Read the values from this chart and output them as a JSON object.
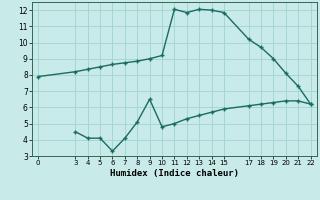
{
  "title": "",
  "xlabel": "Humidex (Indice chaleur)",
  "background_color": "#c8eae8",
  "grid_color": "#a0d4d0",
  "line_color": "#1a6b60",
  "upper_x": [
    0,
    3,
    4,
    5,
    6,
    7,
    8,
    9,
    10,
    11,
    12,
    13,
    14,
    15,
    17,
    18,
    19,
    20,
    21,
    22
  ],
  "upper_y": [
    7.9,
    8.2,
    8.35,
    8.5,
    8.65,
    8.75,
    8.85,
    9.0,
    9.2,
    12.05,
    11.85,
    12.05,
    12.0,
    11.85,
    10.2,
    9.7,
    9.0,
    8.1,
    7.3,
    6.2
  ],
  "lower_x": [
    3,
    4,
    5,
    6,
    7,
    8,
    9,
    10,
    11,
    12,
    13,
    14,
    15,
    17,
    18,
    19,
    20,
    21,
    22
  ],
  "lower_y": [
    4.5,
    4.1,
    4.1,
    3.3,
    4.1,
    5.1,
    6.5,
    4.8,
    5.0,
    5.3,
    5.5,
    5.7,
    5.9,
    6.1,
    6.2,
    6.3,
    6.4,
    6.4,
    6.2
  ],
  "xlim": [
    -0.5,
    22.5
  ],
  "ylim": [
    3,
    12.5
  ],
  "xticks": [
    0,
    3,
    4,
    5,
    6,
    7,
    8,
    9,
    10,
    11,
    12,
    13,
    14,
    15,
    17,
    18,
    19,
    20,
    21,
    22
  ],
  "yticks": [
    3,
    4,
    5,
    6,
    7,
    8,
    9,
    10,
    11,
    12
  ]
}
